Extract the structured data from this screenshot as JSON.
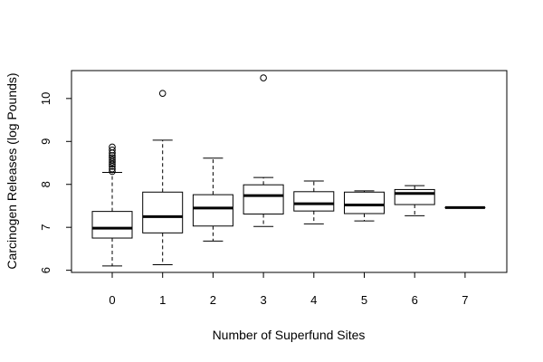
{
  "chart_data": {
    "type": "box",
    "title": "",
    "xlabel": "Number of Superfund Sites",
    "ylabel": "Carcinogen Releases (log Pounds)",
    "categories": [
      "0",
      "1",
      "2",
      "3",
      "4",
      "5",
      "6",
      "7"
    ],
    "ylim": [
      5.95,
      10.65
    ],
    "yticks": [
      "6",
      "7",
      "8",
      "9",
      "10"
    ],
    "grid": false,
    "boxes": [
      {
        "category": "0",
        "whisker_low": 6.1,
        "q1": 6.75,
        "median": 6.98,
        "q3": 7.37,
        "whisker_high": 8.28,
        "outliers": [
          8.3,
          8.36,
          8.42,
          8.47,
          8.52,
          8.57,
          8.62,
          8.67,
          8.73,
          8.8,
          8.87
        ]
      },
      {
        "category": "1",
        "whisker_low": 6.13,
        "q1": 6.87,
        "median": 7.25,
        "q3": 7.82,
        "whisker_high": 9.03,
        "outliers": [
          10.12
        ]
      },
      {
        "category": "2",
        "whisker_low": 6.68,
        "q1": 7.03,
        "median": 7.45,
        "q3": 7.76,
        "whisker_high": 8.61,
        "outliers": []
      },
      {
        "category": "3",
        "whisker_low": 7.02,
        "q1": 7.31,
        "median": 7.74,
        "q3": 7.99,
        "whisker_high": 8.16,
        "outliers": [
          10.48
        ]
      },
      {
        "category": "4",
        "whisker_low": 7.08,
        "q1": 7.38,
        "median": 7.55,
        "q3": 7.83,
        "whisker_high": 8.08,
        "outliers": []
      },
      {
        "category": "5",
        "whisker_low": 7.15,
        "q1": 7.32,
        "median": 7.52,
        "q3": 7.82,
        "whisker_high": 7.85,
        "outliers": []
      },
      {
        "category": "6",
        "whisker_low": 7.27,
        "q1": 7.53,
        "median": 7.79,
        "q3": 7.88,
        "whisker_high": 7.97,
        "outliers": []
      },
      {
        "category": "7",
        "whisker_low": 7.46,
        "q1": 7.46,
        "median": 7.46,
        "q3": 7.46,
        "whisker_high": 7.46,
        "outliers": []
      }
    ]
  }
}
